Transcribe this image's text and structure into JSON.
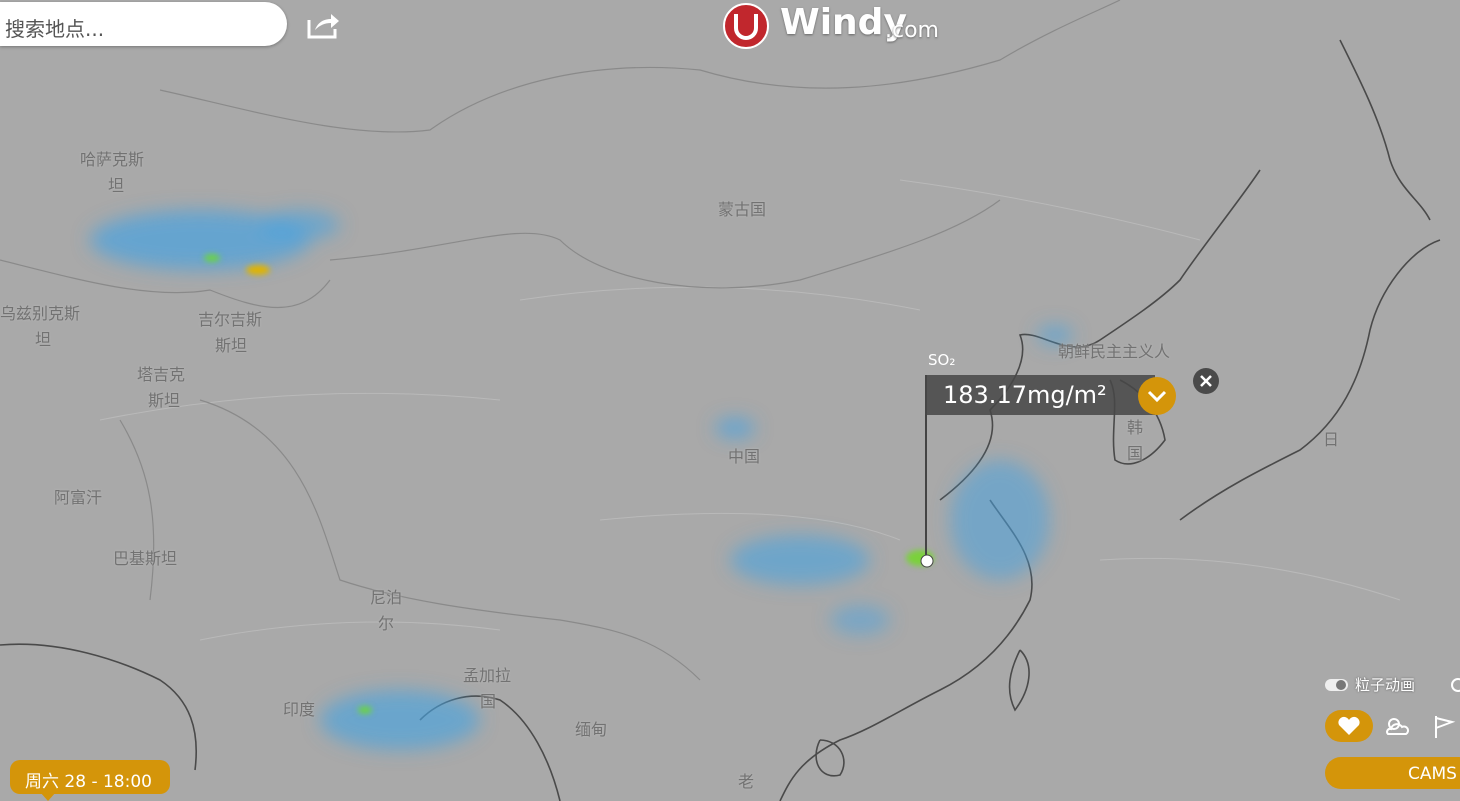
{
  "search": {
    "placeholder": "搜索地点..."
  },
  "logo": {
    "name": "Windy",
    "suffix": ".com"
  },
  "map": {
    "labels": [
      "哈萨克斯",
      "坦",
      "蒙古国",
      "乌兹别克斯",
      "坦",
      "吉尔吉斯",
      "斯坦",
      "塔吉克",
      "斯坦",
      "阿富汗",
      "巴基斯坦",
      "中国",
      "尼泊",
      "尔",
      "孟加拉",
      "国",
      "印度",
      "缅甸",
      "朝鲜民主主义人",
      "韩",
      "国",
      "日",
      "老"
    ]
  },
  "popup": {
    "parameter": "SO₂",
    "reading": "183.17mg/m²"
  },
  "timeline": {
    "time": "周六 28 - 18:00"
  },
  "controls": {
    "particles": "粒子动画",
    "model": "CAMS"
  }
}
